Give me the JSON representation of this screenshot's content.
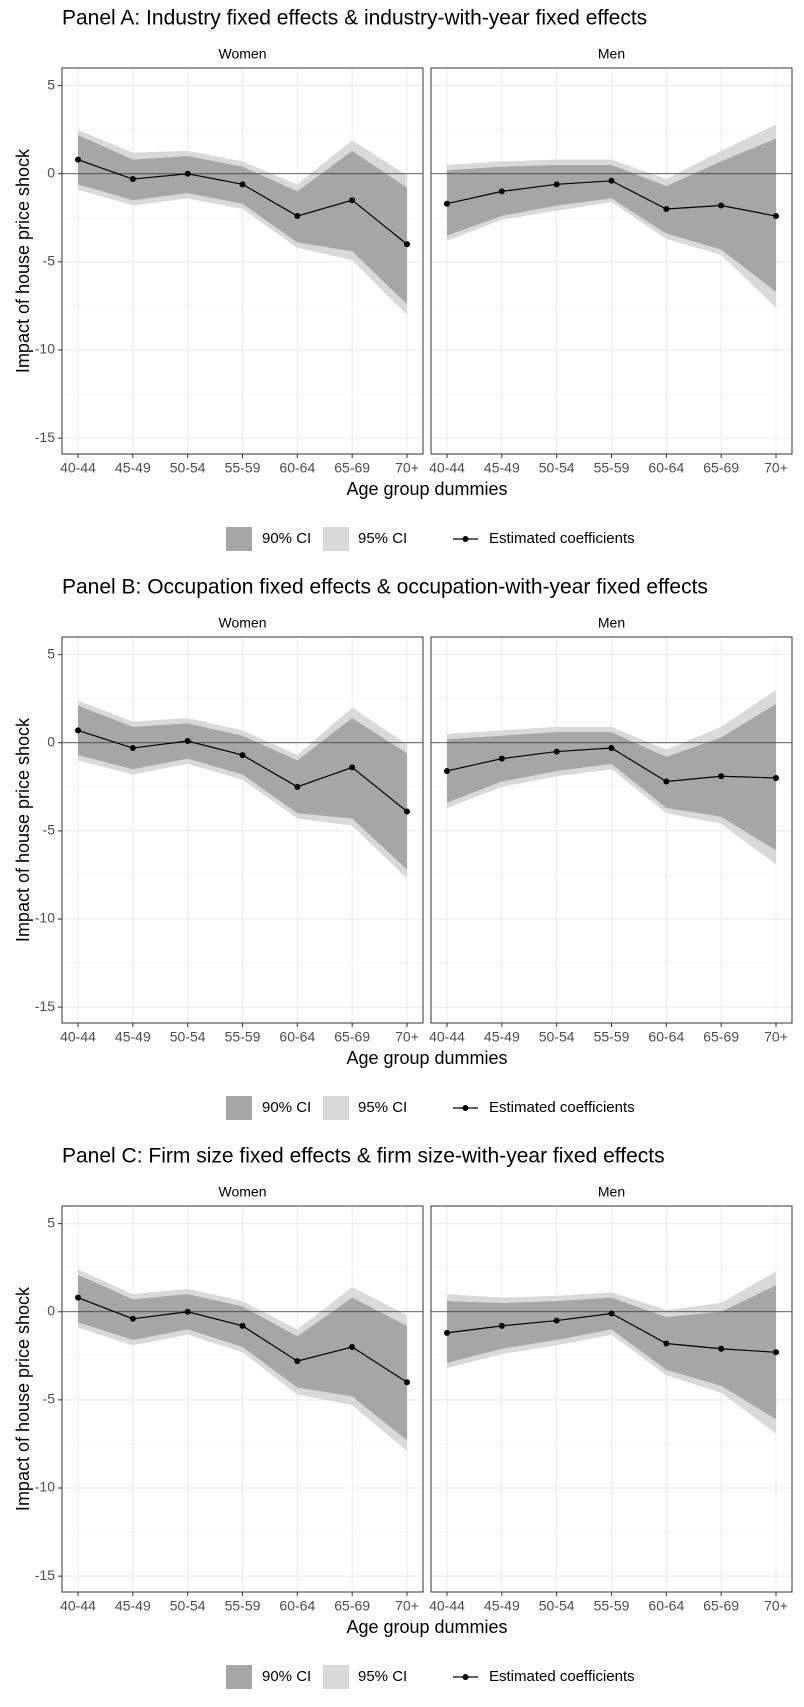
{
  "chart_data": [
    {
      "type": "ribbon-line",
      "title": "Panel A: Industry fixed effects & industry-with-year fixed effects",
      "y_label": "Impact of house price shock",
      "x_label": "Age group dummies",
      "categories": [
        "40-44",
        "45-49",
        "50-54",
        "55-59",
        "60-64",
        "65-69",
        "70+"
      ],
      "ylim": [
        -15.9,
        6
      ],
      "yticks": [
        -15,
        -10,
        -5,
        0,
        5
      ],
      "grid": true,
      "reference_line": 0,
      "legend": [
        {
          "name": "90% CI",
          "color": "#a6a6a6"
        },
        {
          "name": "95% CI",
          "color": "#d9d9d9"
        },
        {
          "name": "Estimated coefficients",
          "color": "#000000"
        }
      ],
      "facets": [
        {
          "name": "Women",
          "values": [
            0.8,
            -0.3,
            0.0,
            -0.6,
            -2.4,
            -1.5,
            -4.0
          ],
          "ci90": {
            "low": [
              -0.6,
              -1.5,
              -1.1,
              -1.7,
              -3.9,
              -4.4,
              -7.4
            ],
            "high": [
              2.2,
              0.8,
              1.0,
              0.4,
              -1.0,
              1.3,
              -0.8
            ]
          },
          "ci95": {
            "low": [
              -0.9,
              -1.8,
              -1.4,
              -2.0,
              -4.2,
              -4.9,
              -8.0
            ],
            "high": [
              2.5,
              1.2,
              1.3,
              0.7,
              -0.6,
              1.9,
              -0.1
            ]
          }
        },
        {
          "name": "Men",
          "values": [
            -1.7,
            -1.0,
            -0.6,
            -0.4,
            -2.0,
            -1.8,
            -2.4
          ],
          "ci90": {
            "low": [
              -3.5,
              -2.4,
              -1.8,
              -1.4,
              -3.4,
              -4.3,
              -6.7
            ],
            "high": [
              0.2,
              0.4,
              0.5,
              0.5,
              -0.7,
              0.7,
              2.0
            ]
          },
          "ci95": {
            "low": [
              -3.8,
              -2.6,
              -2.1,
              -1.6,
              -3.7,
              -4.6,
              -7.6
            ],
            "high": [
              0.5,
              0.7,
              0.8,
              0.8,
              -0.3,
              1.3,
              2.8
            ]
          }
        }
      ]
    },
    {
      "type": "ribbon-line",
      "title": "Panel B: Occupation fixed effects & occupation-with-year fixed effects",
      "y_label": "Impact of house price shock",
      "x_label": "Age group dummies",
      "categories": [
        "40-44",
        "45-49",
        "50-54",
        "55-59",
        "60-64",
        "65-69",
        "70+"
      ],
      "ylim": [
        -15.9,
        6
      ],
      "yticks": [
        -15,
        -10,
        -5,
        0,
        5
      ],
      "grid": true,
      "reference_line": 0,
      "legend": [
        {
          "name": "90% CI",
          "color": "#a6a6a6"
        },
        {
          "name": "95% CI",
          "color": "#d9d9d9"
        },
        {
          "name": "Estimated coefficients",
          "color": "#000000"
        }
      ],
      "facets": [
        {
          "name": "Women",
          "values": [
            0.7,
            -0.3,
            0.1,
            -0.7,
            -2.5,
            -1.4,
            -3.9
          ],
          "ci90": {
            "low": [
              -0.7,
              -1.5,
              -0.9,
              -1.8,
              -4.0,
              -4.3,
              -7.2
            ],
            "high": [
              2.1,
              0.9,
              1.1,
              0.4,
              -1.0,
              1.4,
              -0.6
            ]
          },
          "ci95": {
            "low": [
              -1.0,
              -1.8,
              -1.2,
              -2.1,
              -4.3,
              -4.7,
              -7.7
            ],
            "high": [
              2.4,
              1.2,
              1.4,
              0.7,
              -0.7,
              2.0,
              -0.1
            ]
          }
        },
        {
          "name": "Men",
          "values": [
            -1.6,
            -0.9,
            -0.5,
            -0.3,
            -2.2,
            -1.9,
            -2.0
          ],
          "ci90": {
            "low": [
              -3.4,
              -2.2,
              -1.6,
              -1.2,
              -3.7,
              -4.2,
              -6.1
            ],
            "high": [
              0.2,
              0.4,
              0.6,
              0.6,
              -0.8,
              0.3,
              2.2
            ]
          },
          "ci95": {
            "low": [
              -3.7,
              -2.5,
              -1.9,
              -1.5,
              -4.0,
              -4.6,
              -6.9
            ],
            "high": [
              0.5,
              0.7,
              0.9,
              0.9,
              -0.4,
              0.9,
              3.0
            ]
          }
        }
      ]
    },
    {
      "type": "ribbon-line",
      "title": "Panel C: Firm size fixed effects & firm size-with-year fixed effects",
      "y_label": "Impact of house price shock",
      "x_label": "Age group dummies",
      "categories": [
        "40-44",
        "45-49",
        "50-54",
        "55-59",
        "60-64",
        "65-69",
        "70+"
      ],
      "ylim": [
        -15.9,
        6
      ],
      "yticks": [
        -15,
        -10,
        -5,
        0,
        5
      ],
      "grid": true,
      "reference_line": 0,
      "legend": [
        {
          "name": "90% CI",
          "color": "#a6a6a6"
        },
        {
          "name": "95% CI",
          "color": "#d9d9d9"
        },
        {
          "name": "Estimated coefficients",
          "color": "#000000"
        }
      ],
      "facets": [
        {
          "name": "Women",
          "values": [
            0.8,
            -0.4,
            0.0,
            -0.8,
            -2.8,
            -2.0,
            -4.0
          ],
          "ci90": {
            "low": [
              -0.6,
              -1.6,
              -1.0,
              -2.0,
              -4.3,
              -4.8,
              -7.3
            ],
            "high": [
              2.1,
              0.7,
              1.0,
              0.3,
              -1.4,
              0.8,
              -0.8
            ]
          },
          "ci95": {
            "low": [
              -0.9,
              -1.9,
              -1.3,
              -2.3,
              -4.7,
              -5.3,
              -7.9
            ],
            "high": [
              2.4,
              1.0,
              1.3,
              0.6,
              -1.0,
              1.4,
              -0.2
            ]
          }
        },
        {
          "name": "Men",
          "values": [
            -1.2,
            -0.8,
            -0.5,
            -0.1,
            -1.8,
            -2.1,
            -2.3
          ],
          "ci90": {
            "low": [
              -2.9,
              -2.1,
              -1.6,
              -1.0,
              -3.3,
              -4.2,
              -6.1
            ],
            "high": [
              0.6,
              0.5,
              0.6,
              0.8,
              -0.3,
              0.0,
              1.5
            ]
          },
          "ci95": {
            "low": [
              -3.2,
              -2.4,
              -1.9,
              -1.3,
              -3.6,
              -4.6,
              -6.9
            ],
            "high": [
              1.0,
              0.8,
              0.9,
              1.1,
              0.1,
              0.5,
              2.3
            ]
          }
        }
      ]
    }
  ]
}
